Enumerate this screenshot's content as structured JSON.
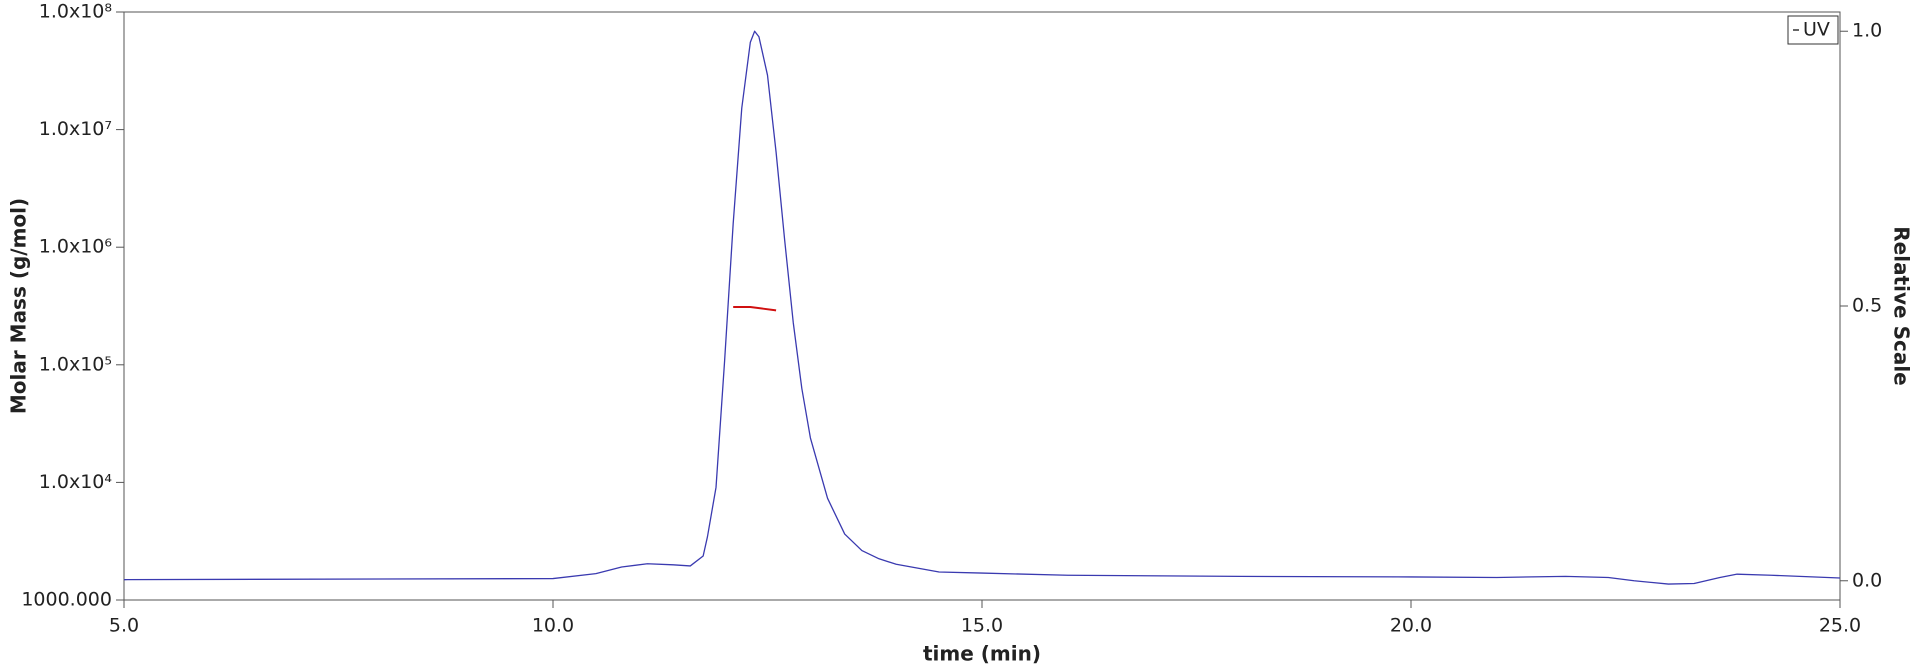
{
  "chart_data": {
    "type": "line",
    "x_label": "time (min)",
    "y_label": "Molar Mass (g/mol)",
    "y2_label": "Relative Scale",
    "yscale": "log",
    "xlim": [
      5,
      25
    ],
    "xticks": [
      {
        "value": 5,
        "label": "5.0"
      },
      {
        "value": 10,
        "label": "10.0"
      },
      {
        "value": 15,
        "label": "15.0"
      },
      {
        "value": 20,
        "label": "20.0"
      },
      {
        "value": 25,
        "label": "25.0"
      }
    ],
    "ylim": [
      1000,
      100000000
    ],
    "yticks": [
      {
        "value": 1000,
        "label": "1000.000"
      },
      {
        "value": 10000,
        "label": "1.0x10⁴"
      },
      {
        "value": 100000,
        "label": "1.0x10⁵"
      },
      {
        "value": 1000000,
        "label": "1.0x10⁶"
      },
      {
        "value": 10000000,
        "label": "1.0x10⁷"
      },
      {
        "value": 100000000,
        "label": "1.0x10⁸"
      }
    ],
    "y2lim": [
      -0.035,
      1.035
    ],
    "y2ticks": [
      {
        "value": 0,
        "label": "0.0"
      },
      {
        "value": 0.5,
        "label": "0.5"
      },
      {
        "value": 1,
        "label": "1.0"
      }
    ],
    "legend": "top-right",
    "series": [
      {
        "name": "UV",
        "color": "#3a3ab0",
        "axis": "y2",
        "x": [
          5,
          10,
          10.5,
          10.8,
          11.1,
          11.4,
          11.6,
          11.75,
          11.8,
          11.9,
          12.0,
          12.1,
          12.2,
          12.3,
          12.35,
          12.4,
          12.5,
          12.6,
          12.7,
          12.8,
          12.9,
          13.0,
          13.2,
          13.4,
          13.6,
          13.8,
          14.0,
          14.5,
          15,
          16,
          18,
          20,
          21,
          21.8,
          22.3,
          22.6,
          23.0,
          23.3,
          23.6,
          23.8,
          24.2,
          25
        ],
        "values": [
          0.002,
          0.004,
          0.013,
          0.025,
          0.031,
          0.029,
          0.027,
          0.045,
          0.08,
          0.17,
          0.4,
          0.65,
          0.86,
          0.98,
          1.0,
          0.99,
          0.92,
          0.78,
          0.62,
          0.47,
          0.35,
          0.26,
          0.15,
          0.085,
          0.055,
          0.04,
          0.03,
          0.016,
          0.014,
          0.01,
          0.008,
          0.007,
          0.006,
          0.008,
          0.006,
          0.0,
          -0.006,
          -0.005,
          0.006,
          0.012,
          0.01,
          0.005
        ]
      },
      {
        "color": "#d01010",
        "axis": "y",
        "x": [
          12.1,
          12.3,
          12.45,
          12.6
        ],
        "values": [
          310000,
          310000,
          300000,
          290000
        ]
      }
    ]
  }
}
